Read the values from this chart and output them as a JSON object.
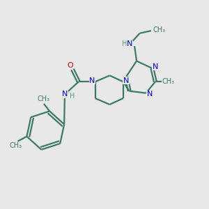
{
  "bg_color": "#e8e8e8",
  "bond_color": "#3d7a65",
  "N_color": "#0000bb",
  "O_color": "#cc0000",
  "H_color": "#5a9a80",
  "line_width": 1.6,
  "fig_size": [
    3.0,
    3.0
  ],
  "dpi": 100,
  "xlim": [
    0,
    10
  ],
  "ylim": [
    0,
    10
  ]
}
